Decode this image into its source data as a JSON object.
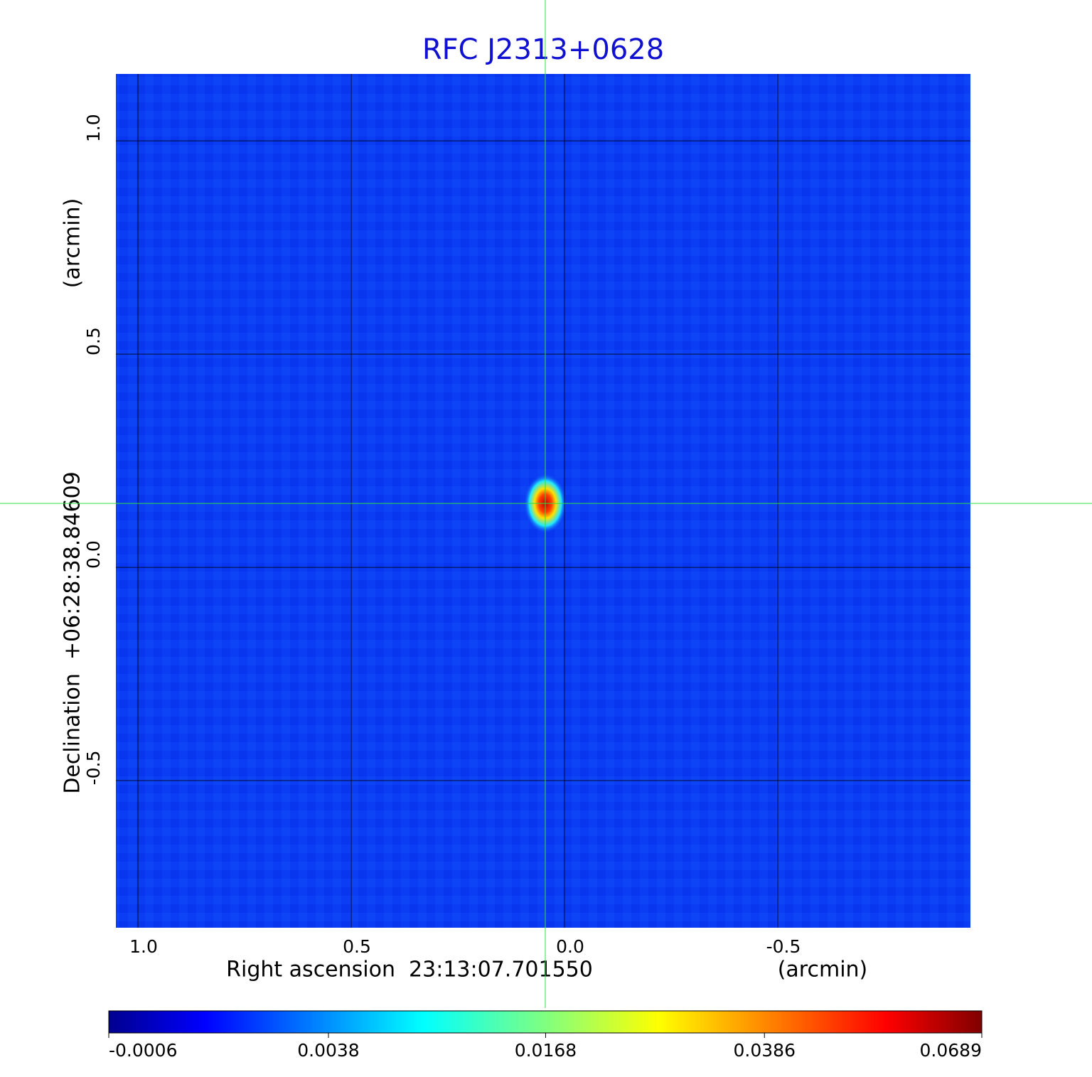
{
  "chart_data": {
    "type": "image",
    "title": "RFC J2313+0628",
    "x_label": "Right ascension  23:13:07.701550",
    "x_unit": "(arcmin)",
    "y_label": "Declination  +06:28:38.84609",
    "y_unit": "(arcmin)",
    "xlim": [
      1.0517,
      -0.9517
    ],
    "xticks": [
      {
        "value": 1,
        "label": "1.0"
      },
      0.5,
      {
        "value": 0,
        "label": "0.0"
      },
      -0.5
    ],
    "ylim": [
      -0.845,
      1.157
    ],
    "yticks": [
      {
        "value": 1,
        "label": "1.0"
      },
      0.5,
      {
        "value": 0,
        "label": "0.0"
      },
      -0.5
    ],
    "grid": true,
    "crosshair": {
      "x": 0.045,
      "y": 0.15
    },
    "colorbar": {
      "scale": "sqrt",
      "clim": [
        -0.0006,
        0.0689
      ],
      "ticks": [
        -0.0006,
        0.0038,
        0.0168,
        0.0386,
        0.0689
      ]
    }
  }
}
